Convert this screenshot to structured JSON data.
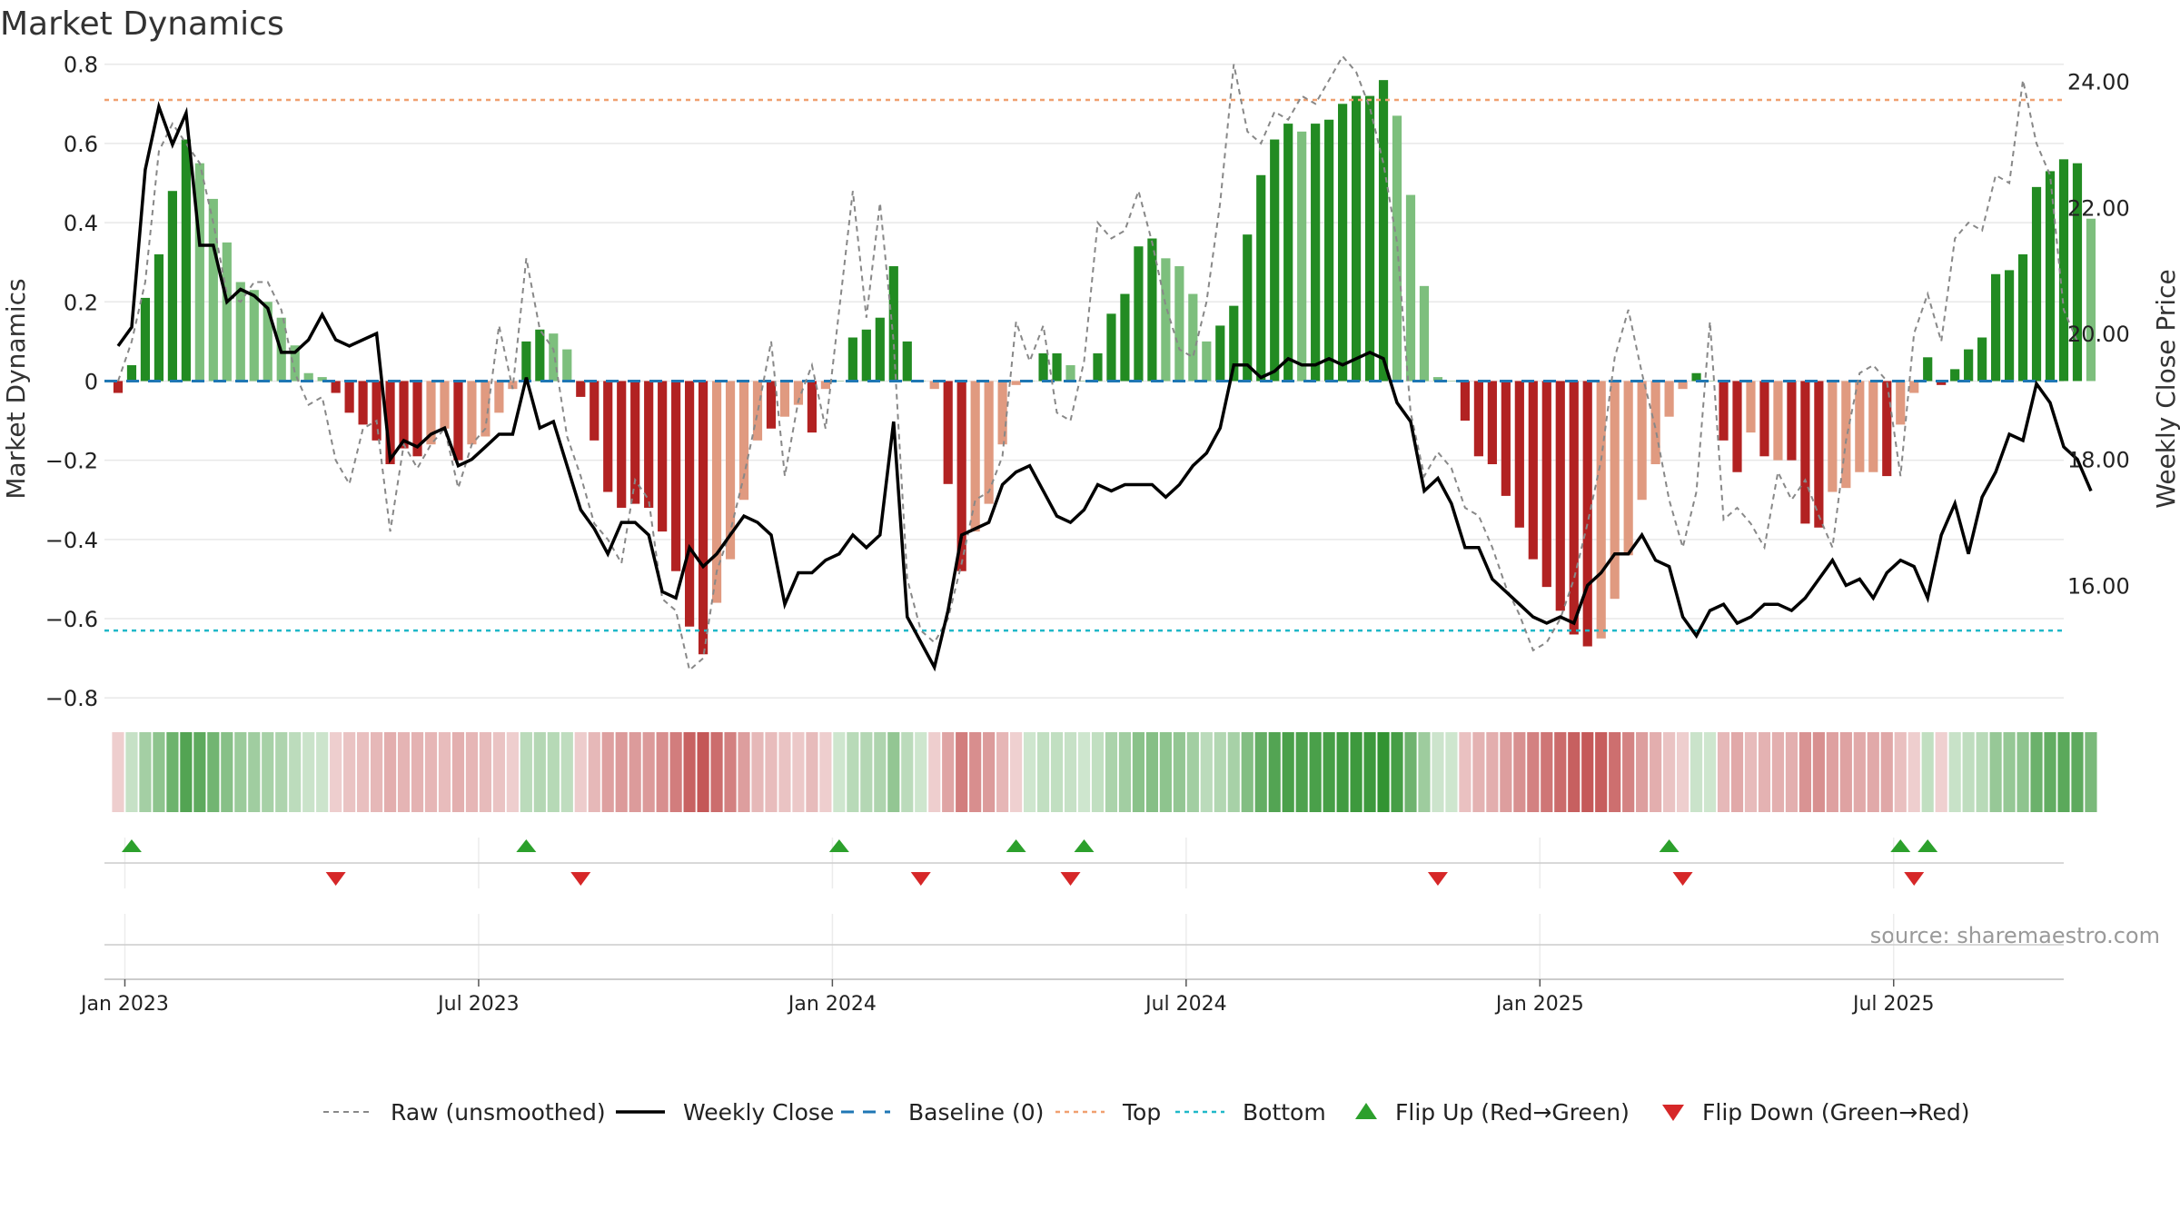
{
  "chart_data": {
    "type": "bar",
    "title": "Market Dynamics",
    "ylabel_left": "Market Dynamics",
    "ylabel_right": "Weekly Close Price",
    "source_text": "source: sharemaestro.com",
    "y_left_range": [
      -0.85,
      0.82
    ],
    "y_left_ticks": [
      {
        "v": 0.8,
        "label": "0.8"
      },
      {
        "v": 0.6,
        "label": "0.6"
      },
      {
        "v": 0.4,
        "label": "0.4"
      },
      {
        "v": 0.2,
        "label": "0.2"
      },
      {
        "v": 0.0,
        "label": "0"
      },
      {
        "v": -0.2,
        "label": "−0.2"
      },
      {
        "v": -0.4,
        "label": "−0.4"
      },
      {
        "v": -0.6,
        "label": "−0.6"
      },
      {
        "v": -0.8,
        "label": "−0.8"
      }
    ],
    "y_right_range": [
      13.9,
      24.4
    ],
    "y_right_ticks": [
      {
        "v": 24,
        "label": "24.00"
      },
      {
        "v": 22,
        "label": "22.00"
      },
      {
        "v": 20,
        "label": "20.00"
      },
      {
        "v": 18,
        "label": "18.00"
      },
      {
        "v": 16,
        "label": "16.00"
      }
    ],
    "x_range": [
      -1,
      143
    ],
    "x_ticks": [
      {
        "v": 0.5,
        "label": "Jan 2023"
      },
      {
        "v": 26.5,
        "label": "Jul 2023"
      },
      {
        "v": 52.5,
        "label": "Jan 2024"
      },
      {
        "v": 78.5,
        "label": "Jul 2024"
      },
      {
        "v": 104.5,
        "label": "Jan 2025"
      },
      {
        "v": 130.5,
        "label": "Jul 2025"
      }
    ],
    "top_line": 0.71,
    "bottom_line": -0.63,
    "baseline": 0,
    "colors": {
      "strong_green": "#228b22",
      "light_green": "#7dbf7d",
      "strong_red": "#b22222",
      "light_red": "#e09a80",
      "top": "#f0a070",
      "bottom": "#20b8c8",
      "baseline": "#1f77b4",
      "close": "#000000",
      "raw": "#888888",
      "flip_up": "#2ca02c",
      "flip_down": "#d62728"
    },
    "series": [
      {
        "name": "Market Dynamics",
        "values": [
          -0.03,
          0.04,
          0.21,
          0.32,
          0.48,
          0.61,
          0.55,
          0.46,
          0.35,
          0.25,
          0.23,
          0.2,
          0.16,
          0.09,
          0.02,
          0.01,
          -0.03,
          -0.08,
          -0.11,
          -0.15,
          -0.21,
          -0.17,
          -0.19,
          -0.16,
          -0.12,
          -0.2,
          -0.16,
          -0.14,
          -0.08,
          -0.02,
          0.1,
          0.13,
          0.12,
          0.08,
          -0.04,
          -0.15,
          -0.28,
          -0.32,
          -0.31,
          -0.32,
          -0.38,
          -0.48,
          -0.62,
          -0.69,
          -0.56,
          -0.45,
          -0.3,
          -0.15,
          -0.12,
          -0.09,
          -0.06,
          -0.13,
          -0.02,
          0.0,
          0.11,
          0.13,
          0.16,
          0.29,
          0.1,
          0.0,
          -0.02,
          -0.26,
          -0.48,
          -0.38,
          -0.31,
          -0.16,
          -0.01,
          0.0,
          0.07,
          0.07,
          0.04,
          0.0,
          0.07,
          0.17,
          0.22,
          0.34,
          0.36,
          0.31,
          0.29,
          0.22,
          0.1,
          0.14,
          0.19,
          0.37,
          0.52,
          0.61,
          0.65,
          0.63,
          0.65,
          0.66,
          0.7,
          0.72,
          0.72,
          0.76,
          0.67,
          0.47,
          0.24,
          0.01,
          0.0,
          -0.1,
          -0.19,
          -0.21,
          -0.29,
          -0.37,
          -0.45,
          -0.52,
          -0.58,
          -0.64,
          -0.67,
          -0.65,
          -0.55,
          -0.44,
          -0.3,
          -0.21,
          -0.09,
          -0.02,
          0.02,
          0.0,
          -0.15,
          -0.23,
          -0.13,
          -0.19,
          -0.2,
          -0.2,
          -0.36,
          -0.37,
          -0.28,
          -0.27,
          -0.23,
          -0.23,
          -0.24,
          -0.11,
          -0.03,
          0.06,
          -0.01,
          0.03,
          0.08,
          0.11,
          0.27,
          0.28,
          0.32,
          0.49,
          0.53,
          0.56,
          0.55,
          0.41
        ],
        "strong": [
          1,
          1,
          1,
          1,
          1,
          1,
          0,
          0,
          0,
          0,
          0,
          0,
          0,
          0,
          0,
          0,
          1,
          1,
          1,
          1,
          1,
          1,
          1,
          0,
          0,
          1,
          0,
          0,
          0,
          0,
          1,
          1,
          0,
          0,
          1,
          1,
          1,
          1,
          1,
          1,
          1,
          1,
          1,
          1,
          0,
          0,
          0,
          0,
          1,
          0,
          0,
          1,
          0,
          0,
          1,
          1,
          1,
          1,
          1,
          0,
          0,
          1,
          1,
          0,
          0,
          0,
          0,
          0,
          1,
          1,
          0,
          0,
          1,
          1,
          1,
          1,
          1,
          0,
          0,
          0,
          0,
          1,
          1,
          1,
          1,
          1,
          1,
          0,
          1,
          1,
          1,
          1,
          1,
          1,
          0,
          0,
          0,
          0,
          0,
          1,
          1,
          1,
          1,
          1,
          1,
          1,
          1,
          1,
          1,
          0,
          0,
          0,
          0,
          0,
          0,
          0,
          1,
          0,
          1,
          1,
          0,
          1,
          0,
          1,
          1,
          1,
          0,
          0,
          0,
          0,
          1,
          0,
          0,
          1,
          1,
          1,
          1,
          1,
          1,
          1,
          1,
          1,
          1,
          1,
          1,
          0
        ]
      },
      {
        "name": "Raw (unsmoothed)",
        "values": [
          0.0,
          0.1,
          0.25,
          0.58,
          0.65,
          0.6,
          0.55,
          0.4,
          0.22,
          0.2,
          0.25,
          0.25,
          0.18,
          0.02,
          -0.06,
          -0.04,
          -0.2,
          -0.26,
          -0.12,
          -0.1,
          -0.38,
          -0.16,
          -0.22,
          -0.16,
          -0.12,
          -0.27,
          -0.16,
          -0.12,
          0.14,
          -0.02,
          0.31,
          0.13,
          0.08,
          -0.14,
          -0.24,
          -0.36,
          -0.4,
          -0.46,
          -0.25,
          -0.3,
          -0.55,
          -0.58,
          -0.73,
          -0.7,
          -0.48,
          -0.38,
          -0.24,
          -0.08,
          0.1,
          -0.24,
          -0.05,
          0.04,
          -0.12,
          0.18,
          0.48,
          0.16,
          0.45,
          0.1,
          -0.5,
          -0.63,
          -0.66,
          -0.6,
          -0.46,
          -0.3,
          -0.28,
          -0.19,
          0.15,
          0.05,
          0.14,
          -0.08,
          -0.1,
          0.05,
          0.4,
          0.36,
          0.38,
          0.48,
          0.35,
          0.19,
          0.08,
          0.06,
          0.2,
          0.45,
          0.8,
          0.63,
          0.6,
          0.68,
          0.66,
          0.72,
          0.7,
          0.76,
          0.82,
          0.78,
          0.69,
          0.55,
          0.35,
          -0.08,
          -0.24,
          -0.18,
          -0.22,
          -0.32,
          -0.34,
          -0.42,
          -0.52,
          -0.59,
          -0.68,
          -0.66,
          -0.6,
          -0.5,
          -0.36,
          -0.2,
          0.06,
          0.18,
          0.02,
          -0.12,
          -0.3,
          -0.42,
          -0.28,
          0.15,
          -0.35,
          -0.32,
          -0.36,
          -0.42,
          -0.23,
          -0.3,
          -0.25,
          -0.34,
          -0.42,
          -0.15,
          0.02,
          0.04,
          0.0,
          -0.24,
          0.12,
          0.22,
          0.1,
          0.36,
          0.4,
          0.38,
          0.52,
          0.5,
          0.76,
          0.6,
          0.52,
          0.18,
          0.1
        ]
      },
      {
        "name": "Weekly Close",
        "values": [
          19.8,
          20.1,
          22.6,
          23.6,
          23.0,
          23.5,
          21.4,
          21.4,
          20.5,
          20.7,
          20.6,
          20.4,
          19.7,
          19.7,
          19.9,
          20.3,
          19.9,
          19.8,
          19.9,
          20.0,
          18.0,
          18.3,
          18.2,
          18.4,
          18.5,
          17.9,
          18.0,
          18.2,
          18.4,
          18.4,
          19.3,
          18.5,
          18.6,
          17.9,
          17.2,
          16.9,
          16.5,
          17.0,
          17.0,
          16.8,
          15.9,
          15.8,
          16.6,
          16.3,
          16.5,
          16.8,
          17.1,
          17.0,
          16.8,
          15.7,
          16.2,
          16.2,
          16.4,
          16.5,
          16.8,
          16.6,
          16.8,
          18.6,
          15.5,
          15.1,
          14.7,
          15.6,
          16.8,
          16.9,
          17.0,
          17.6,
          17.8,
          17.9,
          17.5,
          17.1,
          17.0,
          17.2,
          17.6,
          17.5,
          17.6,
          17.6,
          17.6,
          17.4,
          17.6,
          17.9,
          18.1,
          18.5,
          19.5,
          19.5,
          19.3,
          19.4,
          19.6,
          19.5,
          19.5,
          19.6,
          19.5,
          19.6,
          19.7,
          19.6,
          18.9,
          18.6,
          17.5,
          17.7,
          17.3,
          16.6,
          16.6,
          16.1,
          15.9,
          15.7,
          15.5,
          15.4,
          15.5,
          15.4,
          16.0,
          16.2,
          16.5,
          16.5,
          16.8,
          16.4,
          16.3,
          15.5,
          15.2,
          15.6,
          15.7,
          15.4,
          15.5,
          15.7,
          15.7,
          15.6,
          15.8,
          16.1,
          16.4,
          16.0,
          16.1,
          15.8,
          16.2,
          16.4,
          16.3,
          15.8,
          16.8,
          17.3,
          16.5,
          17.4,
          17.8,
          18.4,
          18.3,
          19.2,
          18.9,
          18.2,
          18.0,
          17.5
        ]
      }
    ],
    "flip_up_x": [
      1,
      30,
      53,
      66,
      71,
      114,
      131,
      133
    ],
    "flip_down_x": [
      16,
      34,
      59,
      70,
      97,
      115,
      132
    ],
    "legend_position": "bottom",
    "legend": [
      {
        "label": "Raw (unsmoothed)",
        "style": "dashed-gray"
      },
      {
        "label": "Weekly Close",
        "style": "solid-black"
      },
      {
        "label": "Baseline (0)",
        "style": "dashed-blue"
      },
      {
        "label": "Top",
        "style": "dotted-orange"
      },
      {
        "label": "Bottom",
        "style": "dotted-cyan"
      },
      {
        "label": "Flip Up (Red→Green)",
        "style": "triangle-up-green"
      },
      {
        "label": "Flip Down (Green→Red)",
        "style": "triangle-down-red"
      }
    ]
  }
}
